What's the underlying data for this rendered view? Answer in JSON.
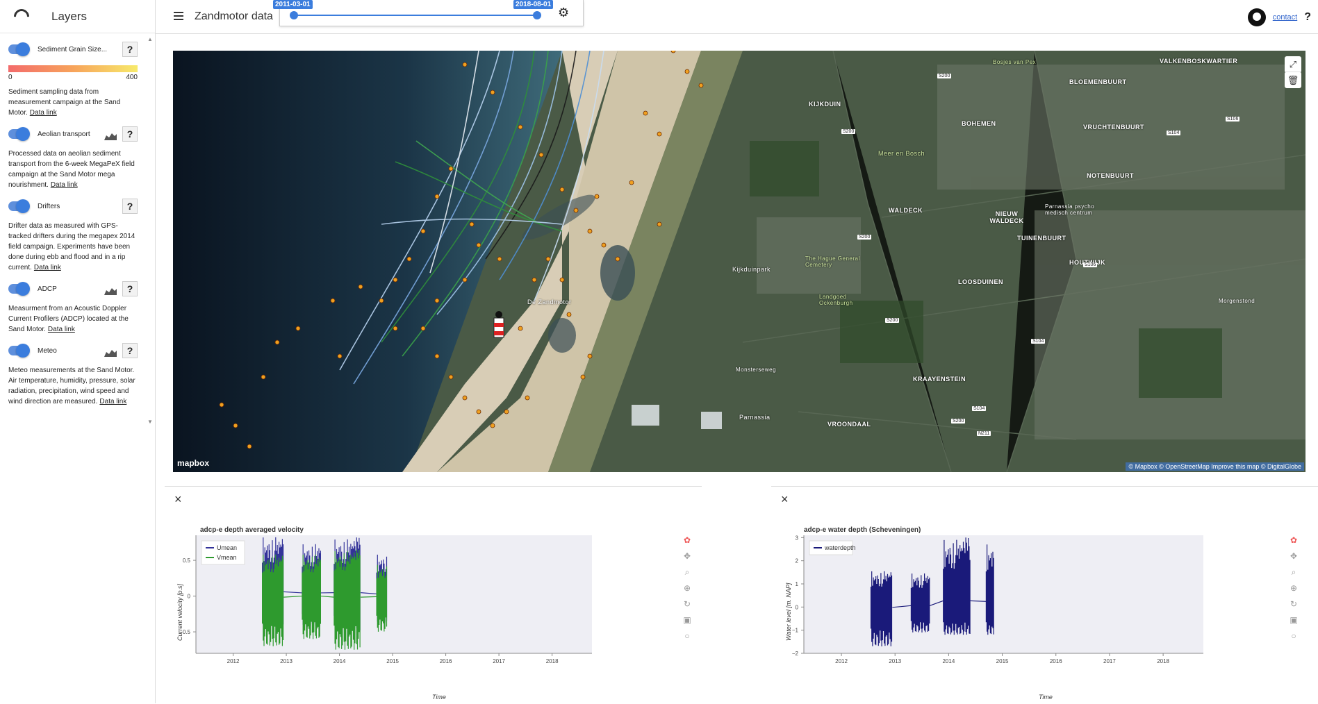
{
  "sidebar": {
    "title": "Layers",
    "layers": [
      {
        "name": "Sediment Grain Size...",
        "desc": "Sediment sampling data from measurement campaign at the Sand Motor.",
        "link": "Data link",
        "legend_min": "0",
        "legend_max": "400",
        "has_chart": false
      },
      {
        "name": "Aeolian transport",
        "desc": "Processed data on aeolian sediment transport from the 6-week MegaPeX field campaign at the Sand Motor mega nourishment.",
        "link": "Data link",
        "has_chart": true
      },
      {
        "name": "Drifters",
        "desc": "Drifter data as measured with GPS-tracked drifters during the megapex 2014 field campaign. Experiments have been done during ebb and flood and in a rip current.",
        "link": "Data link",
        "has_chart": false
      },
      {
        "name": "ADCP",
        "desc": "Measurment from an Acoustic Doppler Current Profilers (ADCP) located at the Sand Motor.",
        "link": "Data link",
        "has_chart": true
      },
      {
        "name": "Meteo",
        "desc": "Meteo measurements at the Sand Motor. Air temperature, humidity, pressure, solar radiation, precipitation, wind speed and wind direction are measured.",
        "link": "Data link",
        "has_chart": true
      }
    ],
    "help": "?"
  },
  "topbar": {
    "title": "Zandmotor data",
    "date_start": "2011-03-01",
    "date_end": "2018-08-01",
    "contact": "contact",
    "help": "?",
    "logo1": "",
    "logo2": ""
  },
  "map": {
    "attribution": "© Mapbox © OpenStreetMap Improve this map © DigitalGlobe",
    "brand": "mapbox",
    "places": [
      "VALKENBOSKWARTIER",
      "BLOEMENBUURT",
      "KIJKDUIN",
      "BOHEMEN",
      "VRUCHTENBUURT",
      "Meer en Bosch",
      "NOTENBUURT",
      "WALDECK",
      "NIEUW WALDECK",
      "TUINENBUURT",
      "HOUTWIJK",
      "LOOSDUINEN",
      "Kijkduinpark",
      "The Hague General Cemetery",
      "Landgoed Ockenburgh",
      "KRAAYENSTEIN",
      "VROONDAAL",
      "Parnassia",
      "De Zandmotor",
      "Bosjes van Pex",
      "Parnassia psycho medisch centrum",
      "Morgenstond",
      "Monsterseweg"
    ],
    "roads": [
      "S200",
      "S200",
      "S200",
      "S200",
      "S106",
      "S104",
      "S106",
      "S104",
      "S200",
      "N211",
      "S104"
    ]
  },
  "charts": [
    {
      "title": "adcp-e depth averaged velocity",
      "ylabel": "Current velocity [p.s]",
      "xlabel": "Time",
      "chart_data": {
        "type": "line",
        "x_ticks": [
          "2012",
          "2013",
          "2014",
          "2015",
          "2016",
          "2017",
          "2018"
        ],
        "y_ticks": [
          "0.5",
          "0",
          "−0.5"
        ],
        "ylim": [
          -0.8,
          0.85
        ],
        "series": [
          {
            "name": "Umean",
            "color": "#333399",
            "segments": [
              {
                "start": 2012.55,
                "end": 2012.95,
                "min": -0.45,
                "max": 0.85
              },
              {
                "start": 2013.3,
                "end": 2013.65,
                "min": -0.45,
                "max": 0.75
              },
              {
                "start": 2013.9,
                "end": 2014.4,
                "min": -0.5,
                "max": 0.82
              },
              {
                "start": 2014.7,
                "end": 2014.9,
                "min": -0.4,
                "max": 0.6
              }
            ]
          },
          {
            "name": "Vmean",
            "color": "#2e9a2e",
            "segments": [
              {
                "start": 2012.55,
                "end": 2012.95,
                "min": -0.7,
                "max": 0.6
              },
              {
                "start": 2013.3,
                "end": 2013.65,
                "min": -0.6,
                "max": 0.6
              },
              {
                "start": 2013.9,
                "end": 2014.4,
                "min": -0.75,
                "max": 0.65
              },
              {
                "start": 2014.7,
                "end": 2014.9,
                "min": -0.5,
                "max": 0.45
              }
            ]
          }
        ]
      }
    },
    {
      "title": "adcp-e water depth (Scheveningen)",
      "ylabel": "Water level [m. NAP]",
      "xlabel": "Time",
      "chart_data": {
        "type": "line",
        "x_ticks": [
          "2012",
          "2013",
          "2014",
          "2015",
          "2016",
          "2017",
          "2018"
        ],
        "y_ticks": [
          "3",
          "2",
          "1",
          "0",
          "−1",
          "−2"
        ],
        "ylim": [
          -2,
          3.1
        ],
        "series": [
          {
            "name": "waterdepth",
            "color": "#1a1a7a",
            "segments": [
              {
                "start": 2012.55,
                "end": 2012.95,
                "min": -1.7,
                "max": 1.6
              },
              {
                "start": 2013.3,
                "end": 2013.65,
                "min": -1.1,
                "max": 1.5
              },
              {
                "start": 2013.9,
                "end": 2014.4,
                "min": -1.2,
                "max": 3.0
              },
              {
                "start": 2014.7,
                "end": 2014.85,
                "min": -1.2,
                "max": 2.8
              }
            ]
          }
        ]
      }
    }
  ]
}
